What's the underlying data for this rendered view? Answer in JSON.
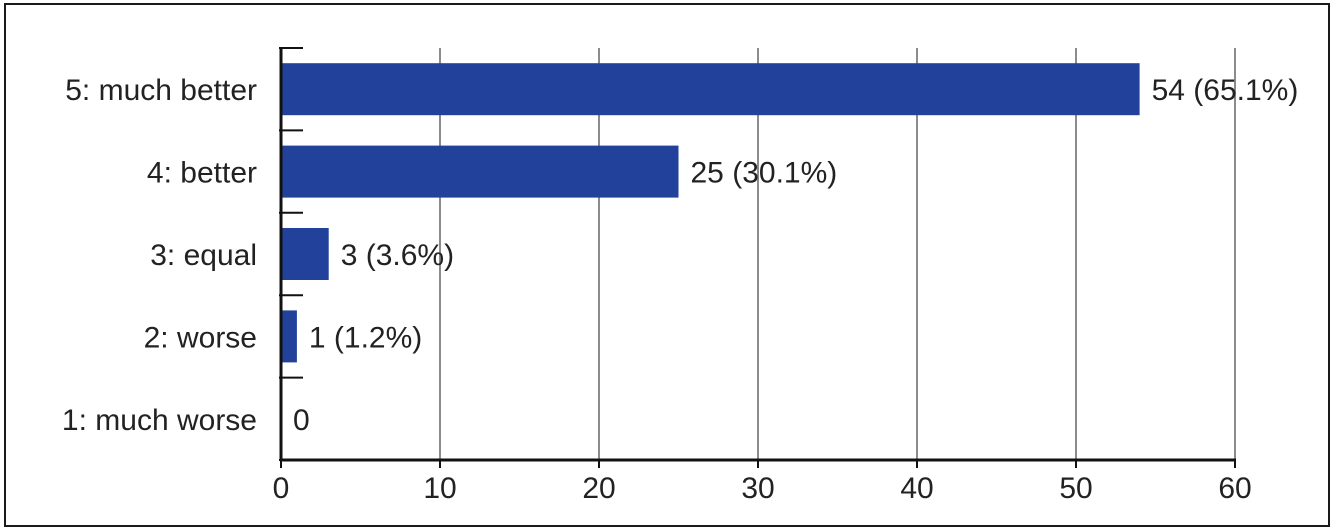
{
  "chart_data": {
    "type": "bar",
    "orientation": "horizontal",
    "categories": [
      "5: much better",
      "4: better",
      "3: equal",
      "2: worse",
      "1: much worse"
    ],
    "values": [
      54,
      25,
      3,
      1,
      0
    ],
    "value_labels": [
      "54 (65.1%)",
      "25 (30.1%)",
      "3 (3.6%)",
      "1 (1.2%)",
      "0"
    ],
    "xlim": [
      0,
      60
    ],
    "x_ticks": [
      0,
      10,
      20,
      30,
      40,
      50,
      60
    ],
    "grid": true,
    "bar_color": "#22419b",
    "title": "",
    "xlabel": "",
    "ylabel": ""
  }
}
